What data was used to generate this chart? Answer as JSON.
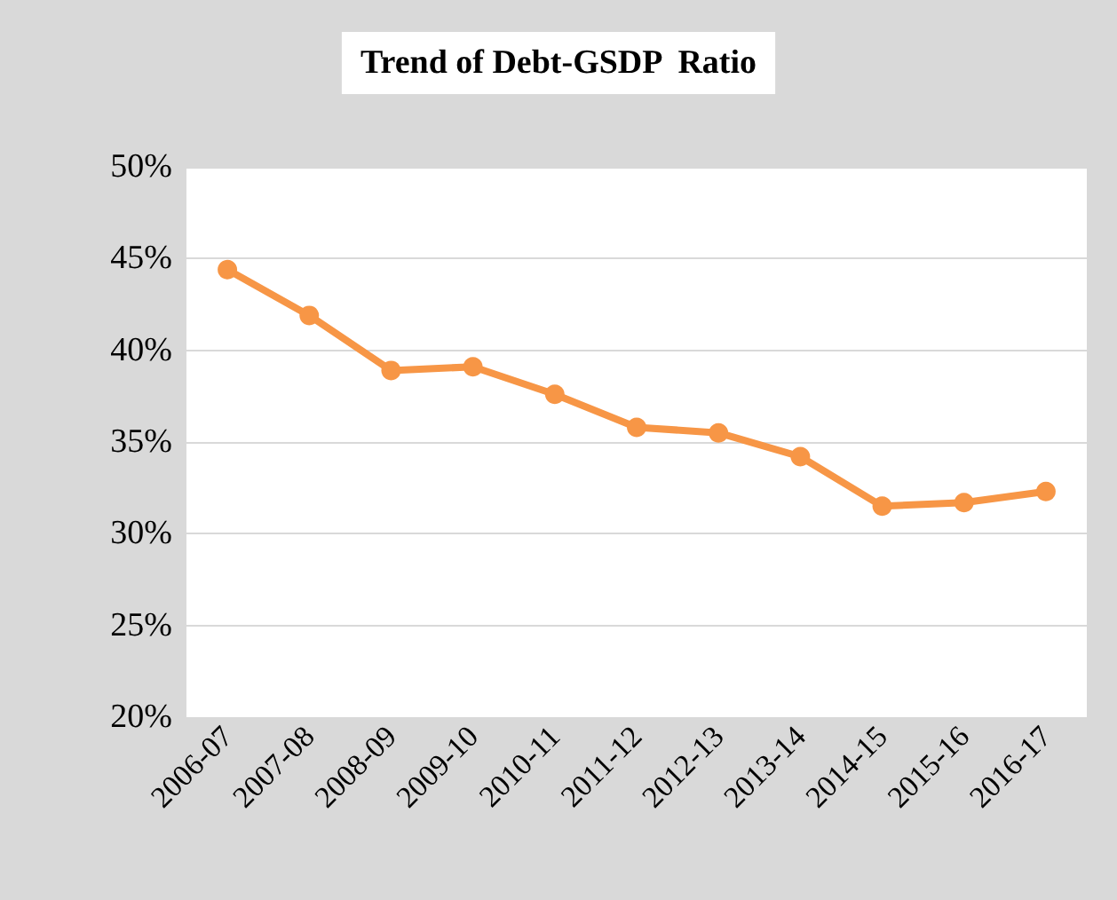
{
  "chart_data": {
    "type": "line",
    "title": "Trend of Debt-GSDP  Ratio",
    "categories": [
      "2006-07",
      "2007-08",
      "2008-09",
      "2009-10",
      "2010-11",
      "2011-12",
      "2012-13",
      "2013-14",
      "2014-15",
      "2015-16",
      "2016-17"
    ],
    "series": [
      {
        "color": "#f79646",
        "values": [
          44.4,
          41.9,
          38.9,
          39.1,
          37.6,
          35.8,
          35.5,
          34.2,
          31.5,
          31.7,
          32.3
        ]
      }
    ],
    "ylim": [
      20,
      50
    ],
    "yticks": [
      {
        "value": 20,
        "label": "20%"
      },
      {
        "value": 25,
        "label": "25%"
      },
      {
        "value": 30,
        "label": "30%"
      },
      {
        "value": 35,
        "label": "35%"
      },
      {
        "value": 40,
        "label": "40%"
      },
      {
        "value": 45,
        "label": "45%"
      },
      {
        "value": 50,
        "label": "50%"
      }
    ],
    "grid": "y",
    "marker": "circle",
    "line_style": "solid"
  }
}
